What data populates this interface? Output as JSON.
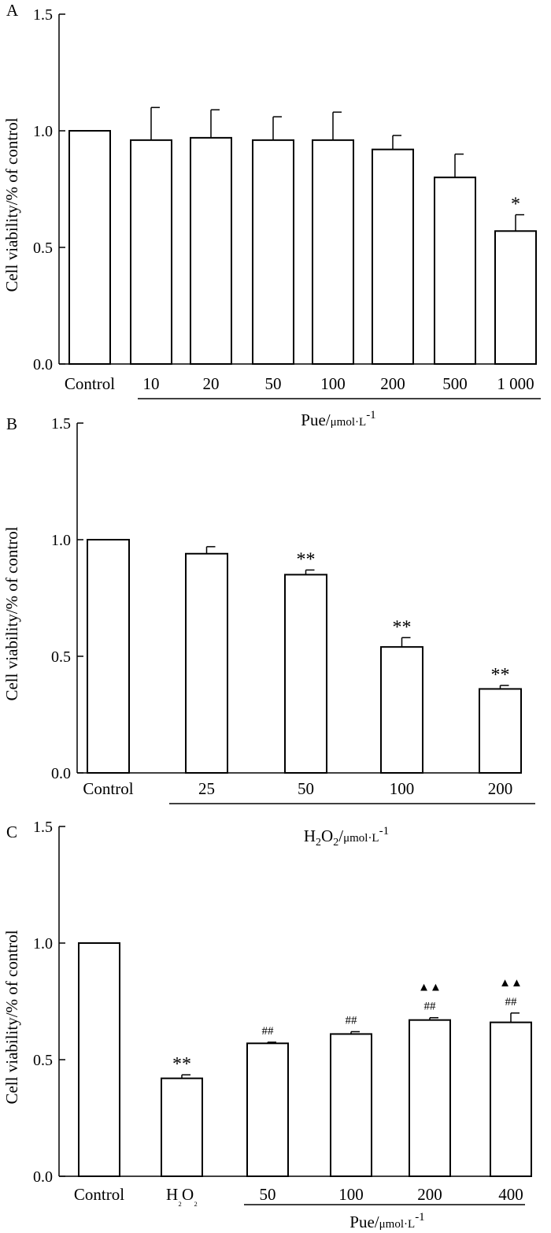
{
  "chart_data": [
    {
      "type": "bar",
      "panel": "A",
      "ylabel": "Cell viability/% of control",
      "ylim": [
        0,
        1.5
      ],
      "yticks": [
        "0.0",
        "0.5",
        "1.0",
        "1.5"
      ],
      "categories": [
        "Control",
        "10",
        "20",
        "50",
        "100",
        "200",
        "500",
        "1 000"
      ],
      "values": [
        1.0,
        0.96,
        0.97,
        0.96,
        0.96,
        0.92,
        0.8,
        0.57
      ],
      "errors": [
        0,
        0.14,
        0.12,
        0.1,
        0.12,
        0.06,
        0.1,
        0.07
      ],
      "significance": [
        "",
        "",
        "",
        "",
        "",
        "",
        "",
        "*"
      ],
      "group_label": {
        "main": "Pue/",
        "unit": "μmol·L",
        "sup": "-1"
      }
    },
    {
      "type": "bar",
      "panel": "B",
      "ylabel": "Cell viability/% of control",
      "ylim": [
        0,
        1.5
      ],
      "yticks": [
        "0.0",
        "0.5",
        "1.0",
        "1.5"
      ],
      "categories": [
        "Control",
        "25",
        "50",
        "100",
        "200"
      ],
      "values": [
        1.0,
        0.94,
        0.85,
        0.54,
        0.36
      ],
      "errors": [
        0,
        0.03,
        0.02,
        0.04,
        0.015
      ],
      "significance": [
        "",
        "",
        "**",
        "**",
        "**"
      ],
      "group_label": {
        "main": "H",
        "sub1": "2",
        "mid": "O",
        "sub2": "2",
        "slash": "/",
        "unit": "μmol·L",
        "sup": "-1"
      }
    },
    {
      "type": "bar",
      "panel": "C",
      "ylabel": "Cell viability/% of control",
      "ylim": [
        0,
        1.5
      ],
      "yticks": [
        "0.0",
        "0.5",
        "1.0",
        "1.5"
      ],
      "categories": [
        "Control",
        "H₂O₂",
        "50",
        "100",
        "200",
        "400"
      ],
      "values": [
        1.0,
        0.42,
        0.57,
        0.61,
        0.67,
        0.66
      ],
      "errors": [
        0,
        0.015,
        0.005,
        0.01,
        0.01,
        0.04
      ],
      "significance": [
        "",
        "**",
        "##",
        "##",
        "##",
        "##"
      ],
      "significance2": [
        "",
        "",
        "",
        "",
        "▲▲",
        "▲▲"
      ],
      "group_label": {
        "main": "Pue/",
        "unit": "μmol·L",
        "sup": "-1"
      }
    }
  ]
}
